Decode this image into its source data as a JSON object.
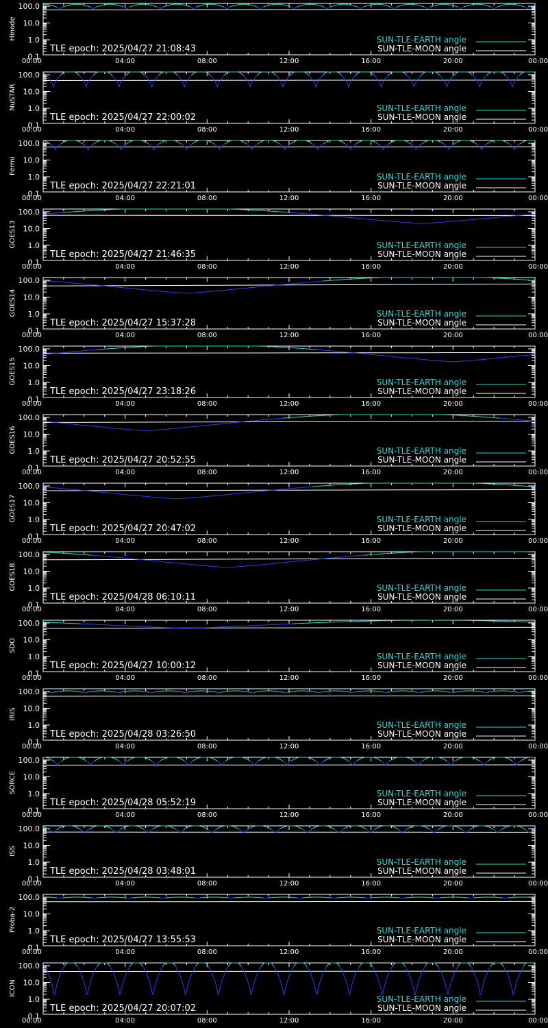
{
  "colors": {
    "background": "#000000",
    "axes": "#ffffff",
    "earth_line_day": "#22dddd",
    "earth_line_night": "#2244ee",
    "moon_line": "#ffffff"
  },
  "legend": {
    "earth_label": "SUN-TLE-EARTH angle",
    "moon_label": "SUN-TLE-MOON angle"
  },
  "chart_data": [
    {
      "type": "line",
      "ylabel": "Hinode",
      "tle_text": "TLE epoch: 2025/04/27 21:08:43",
      "y_scale": "log",
      "ylim": [
        0.1,
        180
      ],
      "ytick_labels": [
        "100.0",
        "10.0",
        "1.0",
        "0.1"
      ],
      "xlim": [
        "00:00",
        "24:00"
      ],
      "xtick_labels": [
        "00:00",
        "04:00",
        "08:00",
        "12:00",
        "16:00",
        "20:00",
        "00:00"
      ],
      "series": [
        {
          "name": "SUN-TLE-EARTH angle",
          "pattern": "orbital",
          "period_hours": 1.63,
          "max": 130,
          "min": 68,
          "phase_hours": 0.0
        },
        {
          "name": "SUN-TLE-MOON angle",
          "start": 60,
          "end": 65
        }
      ]
    },
    {
      "type": "line",
      "ylabel": "NuSTAR",
      "tle_text": "TLE epoch: 2025/04/27 22:00:02",
      "y_scale": "log",
      "ylim": [
        0.1,
        180
      ],
      "ytick_labels": [
        "100.0",
        "10.0",
        "1.0",
        "0.1"
      ],
      "xlim": [
        "00:00",
        "24:00"
      ],
      "xtick_labels": [
        "00:00",
        "04:00",
        "08:00",
        "12:00",
        "16:00",
        "20:00",
        "00:00"
      ],
      "series": [
        {
          "name": "SUN-TLE-EARTH angle",
          "pattern": "orbital",
          "period_hours": 1.6,
          "max": 175,
          "min": 18,
          "phase_hours": 0.3
        },
        {
          "name": "SUN-TLE-MOON angle",
          "start": 45,
          "end": 48
        }
      ]
    },
    {
      "type": "line",
      "ylabel": "Fermi",
      "tle_text": "TLE epoch: 2025/04/27 22:21:01",
      "y_scale": "log",
      "ylim": [
        0.1,
        180
      ],
      "ytick_labels": [
        "100.0",
        "10.0",
        "1.0",
        "0.1"
      ],
      "xlim": [
        "00:00",
        "24:00"
      ],
      "xtick_labels": [
        "00:00",
        "04:00",
        "08:00",
        "12:00",
        "16:00",
        "20:00",
        "00:00"
      ],
      "series": [
        {
          "name": "SUN-TLE-EARTH angle",
          "pattern": "orbital",
          "period_hours": 1.6,
          "max": 155,
          "min": 40,
          "phase_hours": 0.2
        },
        {
          "name": "SUN-TLE-MOON angle",
          "start": 60,
          "end": 62
        }
      ]
    },
    {
      "type": "line",
      "ylabel": "GOES13",
      "tle_text": "TLE epoch: 2025/04/27 21:46:35",
      "y_scale": "log",
      "ylim": [
        0.1,
        180
      ],
      "ytick_labels": [
        "100.0",
        "10.0",
        "1.0",
        "0.1"
      ],
      "xlim": [
        "00:00",
        "24:00"
      ],
      "xtick_labels": [
        "00:00",
        "04:00",
        "08:00",
        "12:00",
        "16:00",
        "20:00",
        "00:00"
      ],
      "series": [
        {
          "name": "SUN-TLE-EARTH angle",
          "pattern": "geo",
          "min_hour": 18.5,
          "max": 170,
          "min": 20
        },
        {
          "name": "SUN-TLE-MOON angle",
          "start": 62,
          "end": 60
        }
      ]
    },
    {
      "type": "line",
      "ylabel": "GOES14",
      "tle_text": "TLE epoch: 2025/04/27 15:37:28",
      "y_scale": "log",
      "ylim": [
        0.1,
        180
      ],
      "ytick_labels": [
        "100.0",
        "10.0",
        "1.0",
        "0.1"
      ],
      "xlim": [
        "00:00",
        "24:00"
      ],
      "xtick_labels": [
        "00:00",
        "04:00",
        "08:00",
        "12:00",
        "16:00",
        "20:00",
        "00:00"
      ],
      "series": [
        {
          "name": "SUN-TLE-EARTH angle",
          "pattern": "geo",
          "min_hour": 7.0,
          "max": 170,
          "min": 17
        },
        {
          "name": "SUN-TLE-MOON angle",
          "start": 46,
          "end": 60
        }
      ]
    },
    {
      "type": "line",
      "ylabel": "GOES15",
      "tle_text": "TLE epoch: 2025/04/27 23:18:26",
      "y_scale": "log",
      "ylim": [
        0.1,
        180
      ],
      "ytick_labels": [
        "100.0",
        "10.0",
        "1.0",
        "0.1"
      ],
      "xlim": [
        "00:00",
        "24:00"
      ],
      "xtick_labels": [
        "00:00",
        "04:00",
        "08:00",
        "12:00",
        "16:00",
        "20:00",
        "00:00"
      ],
      "series": [
        {
          "name": "SUN-TLE-EARTH angle",
          "pattern": "geo",
          "min_hour": 20.0,
          "max": 170,
          "min": 17
        },
        {
          "name": "SUN-TLE-MOON angle",
          "start": 55,
          "end": 60
        }
      ]
    },
    {
      "type": "line",
      "ylabel": "GOES16",
      "tle_text": "TLE epoch: 2025/04/27 20:52:55",
      "y_scale": "log",
      "ylim": [
        0.1,
        180
      ],
      "ytick_labels": [
        "100.0",
        "10.0",
        "1.0",
        "0.1"
      ],
      "xlim": [
        "00:00",
        "24:00"
      ],
      "xtick_labels": [
        "00:00",
        "04:00",
        "08:00",
        "12:00",
        "16:00",
        "20:00",
        "00:00"
      ],
      "series": [
        {
          "name": "SUN-TLE-EARTH angle",
          "pattern": "geo",
          "min_hour": 5.0,
          "max": 170,
          "min": 16
        },
        {
          "name": "SUN-TLE-MOON angle",
          "start": 50,
          "end": 60
        }
      ]
    },
    {
      "type": "line",
      "ylabel": "GOES17",
      "tle_text": "TLE epoch: 2025/04/27 20:47:02",
      "y_scale": "log",
      "ylim": [
        0.1,
        180
      ],
      "ytick_labels": [
        "100.0",
        "10.0",
        "1.0",
        "0.1"
      ],
      "xlim": [
        "00:00",
        "24:00"
      ],
      "xtick_labels": [
        "00:00",
        "04:00",
        "08:00",
        "12:00",
        "16:00",
        "20:00",
        "00:00"
      ],
      "series": [
        {
          "name": "SUN-TLE-EARTH angle",
          "pattern": "geo",
          "min_hour": 6.5,
          "max": 170,
          "min": 17
        },
        {
          "name": "SUN-TLE-MOON angle",
          "start": 52,
          "end": 60
        }
      ]
    },
    {
      "type": "line",
      "ylabel": "GOES18",
      "tle_text": "TLE epoch: 2025/04/28 06:10:11",
      "y_scale": "log",
      "ylim": [
        0.1,
        180
      ],
      "ytick_labels": [
        "100.0",
        "10.0",
        "1.0",
        "0.1"
      ],
      "xlim": [
        "00:00",
        "24:00"
      ],
      "xtick_labels": [
        "00:00",
        "04:00",
        "08:00",
        "12:00",
        "16:00",
        "20:00",
        "00:00"
      ],
      "series": [
        {
          "name": "SUN-TLE-EARTH angle",
          "pattern": "geo",
          "min_hour": 9.0,
          "max": 170,
          "min": 17
        },
        {
          "name": "SUN-TLE-MOON angle",
          "start": 48,
          "end": 60
        }
      ]
    },
    {
      "type": "line",
      "ylabel": "SDO",
      "tle_text": "TLE epoch: 2025/04/27 10:00:12",
      "y_scale": "log",
      "ylim": [
        0.1,
        180
      ],
      "ytick_labels": [
        "100.0",
        "10.0",
        "1.0",
        "0.1"
      ],
      "xlim": [
        "00:00",
        "24:00"
      ],
      "xtick_labels": [
        "00:00",
        "04:00",
        "08:00",
        "12:00",
        "16:00",
        "20:00",
        "00:00"
      ],
      "series": [
        {
          "name": "SUN-TLE-EARTH angle",
          "pattern": "geo",
          "min_hour": 7.0,
          "max": 145,
          "min": 48
        },
        {
          "name": "SUN-TLE-MOON angle",
          "start": 48,
          "end": 55
        }
      ]
    },
    {
      "type": "line",
      "ylabel": "IRIS",
      "tle_text": "TLE epoch: 2025/04/28 03:26:50",
      "y_scale": "log",
      "ylim": [
        0.1,
        180
      ],
      "ytick_labels": [
        "100.0",
        "10.0",
        "1.0",
        "0.1"
      ],
      "xlim": [
        "00:00",
        "24:00"
      ],
      "xtick_labels": [
        "00:00",
        "04:00",
        "08:00",
        "12:00",
        "16:00",
        "20:00",
        "00:00"
      ],
      "series": [
        {
          "name": "SUN-TLE-EARTH angle",
          "pattern": "orbital",
          "period_hours": 1.63,
          "max": 110,
          "min": 82,
          "phase_hours": 0.4
        },
        {
          "name": "SUN-TLE-MOON angle",
          "start": 52,
          "end": 56
        }
      ]
    },
    {
      "type": "line",
      "ylabel": "SORCE",
      "tle_text": "TLE epoch: 2025/04/28 05:52:19",
      "y_scale": "log",
      "ylim": [
        0.1,
        180
      ],
      "ytick_labels": [
        "100.0",
        "10.0",
        "1.0",
        "0.1"
      ],
      "xlim": [
        "00:00",
        "24:00"
      ],
      "xtick_labels": [
        "00:00",
        "04:00",
        "08:00",
        "12:00",
        "16:00",
        "20:00",
        "00:00"
      ],
      "series": [
        {
          "name": "SUN-TLE-EARTH angle",
          "pattern": "orbital",
          "period_hours": 1.6,
          "max": 155,
          "min": 48,
          "phase_hours": 0.1
        },
        {
          "name": "SUN-TLE-MOON angle",
          "start": 50,
          "end": 52
        }
      ]
    },
    {
      "type": "line",
      "ylabel": "ISS",
      "tle_text": "TLE epoch: 2025/04/28 03:48:01",
      "y_scale": "log",
      "ylim": [
        0.1,
        180
      ],
      "ytick_labels": [
        "100.0",
        "10.0",
        "1.0",
        "0.1"
      ],
      "xlim": [
        "00:00",
        "24:00"
      ],
      "xtick_labels": [
        "00:00",
        "04:00",
        "08:00",
        "12:00",
        "16:00",
        "20:00",
        "00:00"
      ],
      "series": [
        {
          "name": "SUN-TLE-EARTH angle",
          "pattern": "orbital",
          "period_hours": 1.55,
          "max": 150,
          "min": 50,
          "phase_hours": 0.3
        },
        {
          "name": "SUN-TLE-MOON angle",
          "start": 62,
          "end": 60
        }
      ]
    },
    {
      "type": "line",
      "ylabel": "Proba-2",
      "tle_text": "TLE epoch: 2025/04/27 13:55:53",
      "y_scale": "log",
      "ylim": [
        0.1,
        180
      ],
      "ytick_labels": [
        "100.0",
        "10.0",
        "1.0",
        "0.1"
      ],
      "xlim": [
        "00:00",
        "24:00"
      ],
      "xtick_labels": [
        "00:00",
        "04:00",
        "08:00",
        "12:00",
        "16:00",
        "20:00",
        "00:00"
      ],
      "series": [
        {
          "name": "SUN-TLE-EARTH angle",
          "pattern": "orbital",
          "period_hours": 1.67,
          "max": 100,
          "min": 85,
          "phase_hours": 0.0
        },
        {
          "name": "SUN-TLE-MOON angle",
          "start": 53,
          "end": 55
        }
      ]
    },
    {
      "type": "line",
      "ylabel": "ICON",
      "tle_text": "TLE epoch: 2025/04/27 20:07:02",
      "y_scale": "log",
      "ylim": [
        0.1,
        180
      ],
      "ytick_labels": [
        "100.0",
        "10.0",
        "1.0",
        "0.1"
      ],
      "xlim": [
        "00:00",
        "24:00"
      ],
      "xtick_labels": [
        "00:00",
        "04:00",
        "08:00",
        "12:00",
        "16:00",
        "20:00",
        "00:00"
      ],
      "series": [
        {
          "name": "SUN-TLE-EARTH angle",
          "pattern": "orbital",
          "period_hours": 1.6,
          "max": 175,
          "min": 1.2,
          "phase_hours": 0.25
        },
        {
          "name": "SUN-TLE-MOON angle",
          "start": 45,
          "end": 47
        }
      ]
    }
  ]
}
